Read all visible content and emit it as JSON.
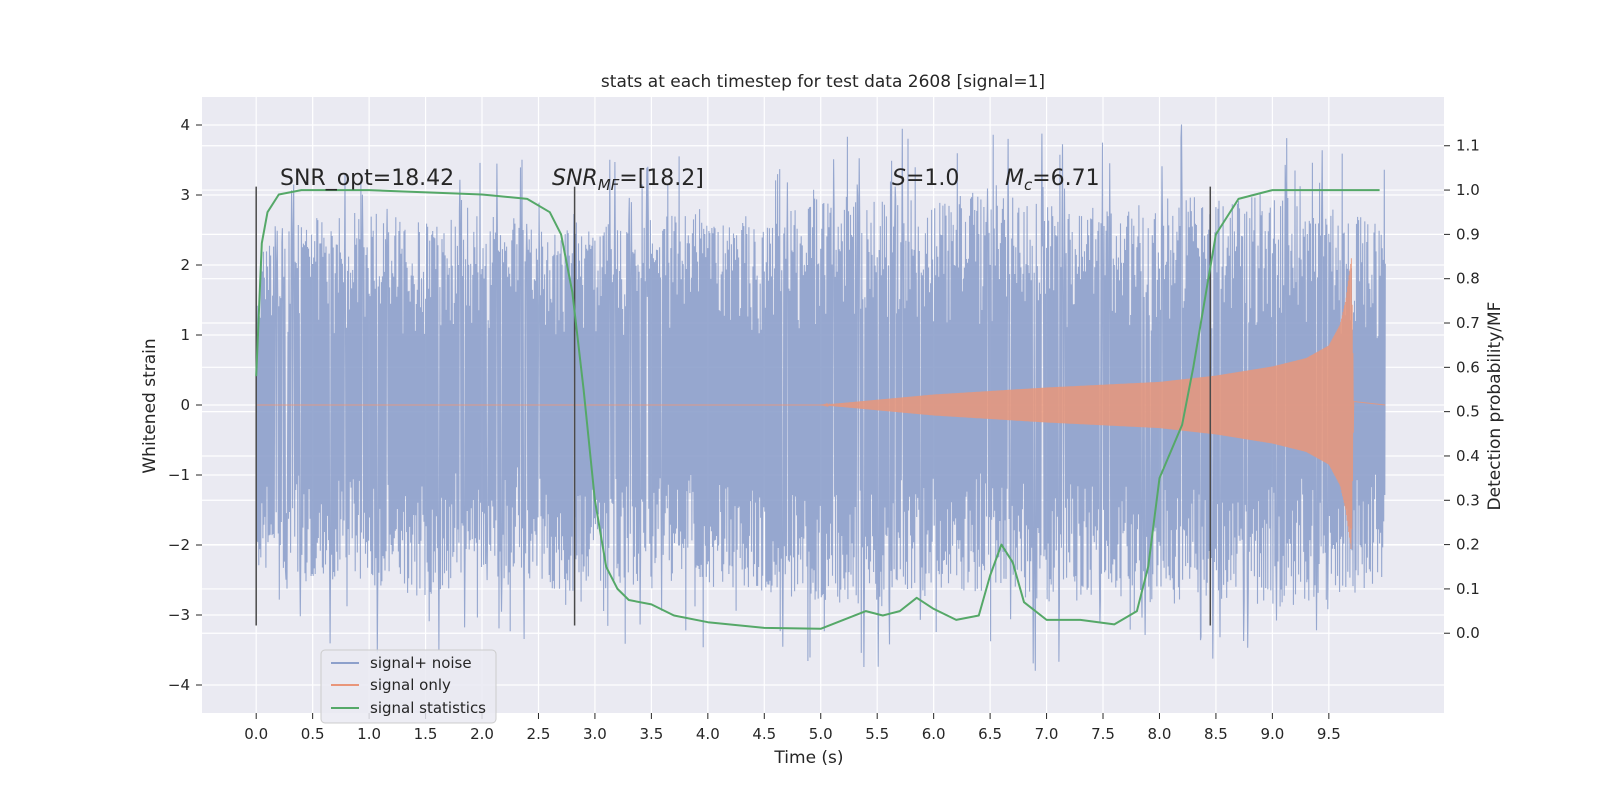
{
  "chart_data": {
    "type": "line",
    "title": "stats at each timestep for test data 2608 [signal=1]",
    "xlabel": "Time (s)",
    "ylabel": "Whitened strain",
    "y2label": "Detection probability/MF",
    "xlim": [
      -0.48,
      10.52
    ],
    "ylim": [
      -4.4,
      4.4
    ],
    "y2lim": [
      -0.18,
      1.21
    ],
    "x_ticks": [
      "0.0",
      "0.5",
      "1.0",
      "1.5",
      "2.0",
      "2.5",
      "3.0",
      "3.5",
      "4.0",
      "4.5",
      "5.0",
      "5.5",
      "6.0",
      "6.5",
      "7.0",
      "7.5",
      "8.0",
      "8.5",
      "9.0",
      "9.5"
    ],
    "y_ticks": [
      "−4",
      "−3",
      "−2",
      "−1",
      "0",
      "1",
      "2",
      "3",
      "4"
    ],
    "y2_ticks": [
      "0.0",
      "0.1",
      "0.2",
      "0.3",
      "0.4",
      "0.5",
      "0.6",
      "0.7",
      "0.8",
      "0.9",
      "1.0",
      "1.1"
    ],
    "grid": true,
    "legend_location": "lower-left",
    "annotations": {
      "snr_opt": "SNR_opt=18.42",
      "snr_mf_symbol": "SNR",
      "snr_mf_sub": "MF",
      "snr_mf_value": "=[18.2]",
      "s_symbol": "S",
      "s_value": "=1.0",
      "mc_symbol": "M",
      "mc_sub": "c",
      "mc_value": "=6.71"
    },
    "vertical_markers": [
      0.0,
      2.82,
      8.45
    ],
    "series": [
      {
        "name": "signal+ noise",
        "color": "#8da0cb",
        "description": "whitened noise with signal, envelope approx",
        "x": [
          0.0,
          0.5,
          1.0,
          1.5,
          2.0,
          2.5,
          3.0,
          3.5,
          4.0,
          4.5,
          5.0,
          5.5,
          6.0,
          6.5,
          7.0,
          7.5,
          8.0,
          8.5,
          9.0,
          9.5,
          10.0
        ],
        "upper": [
          2.3,
          2.7,
          2.8,
          2.6,
          2.9,
          2.5,
          2.6,
          2.7,
          2.8,
          2.6,
          3.0,
          3.0,
          2.9,
          3.1,
          2.9,
          2.8,
          3.0,
          3.0,
          3.1,
          2.8,
          2.6
        ],
        "lower": [
          -2.3,
          -2.5,
          -2.6,
          -2.8,
          -2.4,
          -2.6,
          -2.7,
          -2.5,
          -2.6,
          -2.7,
          -2.8,
          -2.9,
          -2.6,
          -2.7,
          -2.9,
          -2.8,
          -2.7,
          -2.8,
          -2.9,
          -2.9,
          -2.5
        ]
      },
      {
        "name": "signal only",
        "color": "#e9967a",
        "x": [
          5.0,
          6.0,
          7.0,
          7.5,
          8.0,
          8.5,
          9.0,
          9.3,
          9.5,
          9.6,
          9.65,
          9.7,
          9.72
        ],
        "amplitude": [
          0.0,
          0.15,
          0.25,
          0.29,
          0.33,
          0.42,
          0.55,
          0.67,
          0.85,
          1.15,
          1.5,
          2.1,
          0.05
        ]
      },
      {
        "name": "signal statistics",
        "color": "#55a868",
        "x": [
          0.0,
          0.05,
          0.1,
          0.2,
          0.4,
          1.0,
          2.0,
          2.4,
          2.6,
          2.7,
          2.8,
          2.9,
          3.0,
          3.1,
          3.2,
          3.3,
          3.5,
          3.7,
          4.0,
          4.5,
          5.0,
          5.2,
          5.4,
          5.55,
          5.7,
          5.85,
          6.0,
          6.2,
          6.4,
          6.5,
          6.6,
          6.7,
          6.8,
          7.0,
          7.3,
          7.6,
          7.8,
          7.9,
          8.0,
          8.2,
          8.3,
          8.5,
          8.7,
          9.0,
          9.5,
          9.95
        ],
        "y": [
          0.58,
          0.88,
          0.95,
          0.99,
          1.0,
          1.0,
          0.99,
          0.98,
          0.95,
          0.9,
          0.77,
          0.55,
          0.3,
          0.15,
          0.1,
          0.075,
          0.065,
          0.04,
          0.025,
          0.012,
          0.01,
          0.03,
          0.05,
          0.04,
          0.05,
          0.08,
          0.055,
          0.03,
          0.04,
          0.13,
          0.2,
          0.16,
          0.07,
          0.03,
          0.03,
          0.02,
          0.05,
          0.15,
          0.35,
          0.47,
          0.6,
          0.9,
          0.98,
          1.0,
          1.0,
          1.0
        ]
      }
    ]
  }
}
